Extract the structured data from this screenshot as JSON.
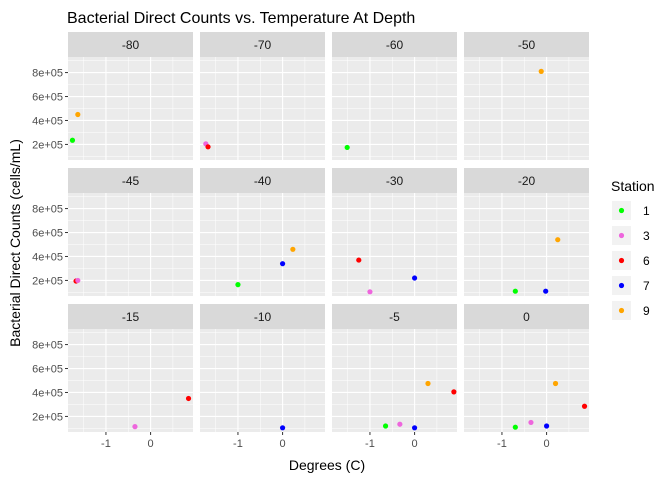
{
  "chart_data": {
    "type": "scatter",
    "title": "Bacterial Direct Counts vs. Temperature At Depth",
    "xlabel": "Degrees (C)",
    "ylabel": "Bacterial Direct Counts (cells/mL)",
    "xlim": [
      -1.85,
      0.95
    ],
    "ylim": [
      70000,
      930000
    ],
    "x_ticks": [
      {
        "value": -1,
        "label": "-1"
      },
      {
        "value": 0,
        "label": "0"
      }
    ],
    "y_ticks": [
      {
        "value": 200000,
        "label": "2e+05"
      },
      {
        "value": 400000,
        "label": "4e+05"
      },
      {
        "value": 600000,
        "label": "6e+05"
      },
      {
        "value": 800000,
        "label": "8e+05"
      }
    ],
    "grid": true,
    "legend": {
      "title": "Station",
      "position": "right",
      "entries": [
        {
          "label": "1",
          "color": "#00ff00"
        },
        {
          "label": "3",
          "color": "#ee66dd"
        },
        {
          "label": "6",
          "color": "#ff0000"
        },
        {
          "label": "7",
          "color": "#0000ff"
        },
        {
          "label": "9",
          "color": "#ffa500"
        }
      ]
    },
    "facets": [
      {
        "label": "-80",
        "points": [
          {
            "station": "9",
            "x": -1.63,
            "y": 450000
          },
          {
            "station": "1",
            "x": -1.75,
            "y": 235000
          }
        ]
      },
      {
        "label": "-70",
        "points": [
          {
            "station": "3",
            "x": -1.72,
            "y": 205000
          },
          {
            "station": "6",
            "x": -1.67,
            "y": 180000
          }
        ]
      },
      {
        "label": "-60",
        "points": [
          {
            "station": "1",
            "x": -1.51,
            "y": 175000
          }
        ]
      },
      {
        "label": "-50",
        "points": [
          {
            "station": "9",
            "x": -0.12,
            "y": 810000
          }
        ]
      },
      {
        "label": "-45",
        "points": [
          {
            "station": "6",
            "x": -1.67,
            "y": 195000
          },
          {
            "station": "3",
            "x": -1.63,
            "y": 200000
          }
        ]
      },
      {
        "label": "-40",
        "points": [
          {
            "station": "1",
            "x": -1.0,
            "y": 165000
          },
          {
            "station": "7",
            "x": 0.0,
            "y": 340000
          },
          {
            "station": "9",
            "x": 0.23,
            "y": 460000
          }
        ]
      },
      {
        "label": "-30",
        "points": [
          {
            "station": "6",
            "x": -1.25,
            "y": 370000
          },
          {
            "station": "3",
            "x": -1.0,
            "y": 105000
          },
          {
            "station": "7",
            "x": 0.0,
            "y": 220000
          }
        ]
      },
      {
        "label": "-20",
        "points": [
          {
            "station": "9",
            "x": 0.25,
            "y": 540000
          },
          {
            "station": "1",
            "x": -0.7,
            "y": 110000
          },
          {
            "station": "7",
            "x": -0.02,
            "y": 110000
          }
        ]
      },
      {
        "label": "-15",
        "points": [
          {
            "station": "3",
            "x": -0.35,
            "y": 115000
          },
          {
            "station": "6",
            "x": 0.85,
            "y": 350000
          }
        ]
      },
      {
        "label": "-10",
        "points": [
          {
            "station": "7",
            "x": 0.0,
            "y": 105000
          }
        ]
      },
      {
        "label": "-5",
        "points": [
          {
            "station": "1",
            "x": -0.65,
            "y": 120000
          },
          {
            "station": "3",
            "x": -0.33,
            "y": 135000
          },
          {
            "station": "7",
            "x": 0.0,
            "y": 105000
          },
          {
            "station": "9",
            "x": 0.3,
            "y": 475000
          },
          {
            "station": "6",
            "x": 0.88,
            "y": 405000
          }
        ]
      },
      {
        "label": "0",
        "points": [
          {
            "station": "1",
            "x": -0.7,
            "y": 110000
          },
          {
            "station": "3",
            "x": -0.35,
            "y": 150000
          },
          {
            "station": "7",
            "x": 0.0,
            "y": 120000
          },
          {
            "station": "9",
            "x": 0.2,
            "y": 475000
          },
          {
            "station": "6",
            "x": 0.85,
            "y": 285000
          }
        ]
      }
    ]
  }
}
